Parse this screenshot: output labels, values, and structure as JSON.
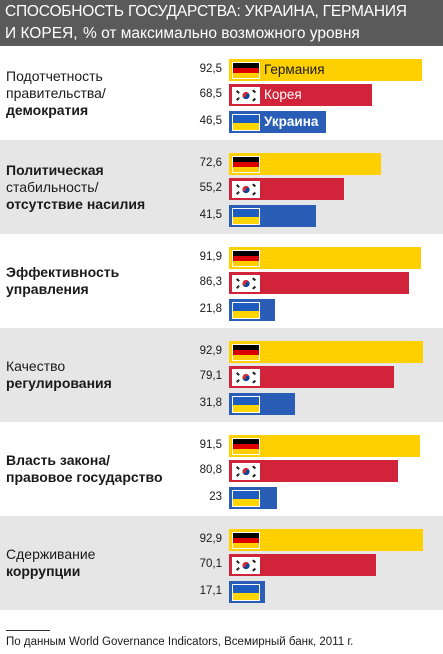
{
  "header": {
    "title_line1": "СПОСОБНОСТЬ ГОСУДАРСТВА: УКРАИНА, ГЕРМАНИЯ",
    "title_line2": "И КОРЕЯ,",
    "subtitle": "% от максимально возможного уровня"
  },
  "footnote": "По данным  World Governance Indicators, Всемирный банк, 2011 г.",
  "colors": {
    "germany": "#ffd000",
    "korea": "#d1233a",
    "ukraine": "#2a5db5",
    "shaded_band": "#e6e6e6",
    "title_bar": "#5a5a5a"
  },
  "chart_data": {
    "type": "bar",
    "orientation": "horizontal",
    "xlim": [
      0,
      100
    ],
    "series": [
      {
        "name": "Германия",
        "flag": "germany-flag",
        "values": [
          92.5,
          72.6,
          91.9,
          92.9,
          91.5,
          92.9
        ],
        "labels": [
          "92,5",
          "72,6",
          "91,9",
          "92,9",
          "91,5",
          "92,9"
        ]
      },
      {
        "name": "Корея",
        "flag": "korea-flag",
        "values": [
          68.5,
          55.2,
          86.3,
          79.1,
          80.8,
          70.1
        ],
        "labels": [
          "68,5",
          "55,2",
          "86,3",
          "79,1",
          "80,8",
          "70,1"
        ]
      },
      {
        "name": "Украина",
        "flag": "ukraine-flag",
        "values": [
          46.5,
          41.5,
          21.8,
          31.8,
          23,
          17.1
        ],
        "labels": [
          "46,5",
          "41,5",
          "21,8",
          "31,8",
          "23",
          "17,1"
        ]
      }
    ],
    "categories": [
      {
        "lines": [
          {
            "text": "Подотчетность",
            "bold": false
          },
          {
            "text": "правительства/",
            "bold": false
          },
          {
            "text": "демократия",
            "bold": true
          }
        ]
      },
      {
        "lines": [
          {
            "text": "Политическая",
            "bold": true
          },
          {
            "text": "стабильность/",
            "bold": false
          },
          {
            "text": "отсутствие насилия",
            "bold": true
          }
        ]
      },
      {
        "lines": [
          {
            "text": "Эффективность",
            "bold": true
          },
          {
            "text": "управления",
            "bold": true
          }
        ]
      },
      {
        "lines": [
          {
            "text": "Качество",
            "bold": false
          },
          {
            "text": "регулирования",
            "bold": true
          }
        ]
      },
      {
        "lines": [
          {
            "text": "Власть закона/",
            "bold": true
          },
          {
            "text": "правовое государство",
            "bold": true
          }
        ]
      },
      {
        "lines": [
          {
            "text": "Сдерживание",
            "bold": false
          },
          {
            "text": "коррупции",
            "bold": true
          }
        ]
      }
    ],
    "in_bar_labels_group": 0
  }
}
